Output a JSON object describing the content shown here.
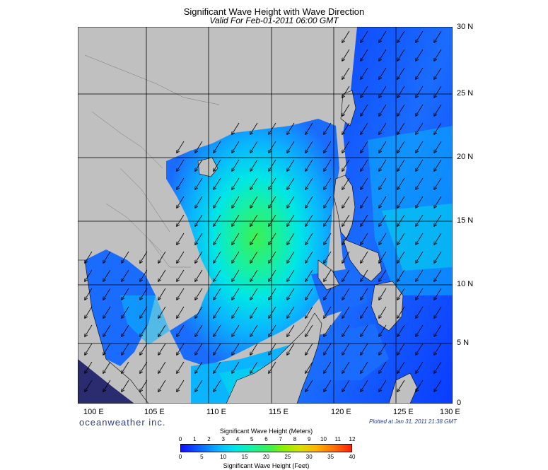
{
  "title": "Significant Wave Height with Wave Direction",
  "subtitle": "Valid For Feb-01-2011 06:00 GMT",
  "lon_labels": [
    "100 E",
    "105 E",
    "110 E",
    "115 E",
    "120 E",
    "125 E",
    "130 E"
  ],
  "lat_labels": [
    "30 N",
    "25 N",
    "20 N",
    "15 N",
    "10 N",
    "5 N",
    "0"
  ],
  "brand": "oceanweather inc.",
  "plotted": "Plotted at Jan 31, 2011 21:38 GMT",
  "legend": {
    "meters_title": "Significant Wave Height (Meters)",
    "feet_title": "Significant Wave Height (Feet)",
    "meters_ticks": [
      "0",
      "1",
      "2",
      "3",
      "4",
      "5",
      "6",
      "7",
      "8",
      "9",
      "10",
      "11",
      "12"
    ],
    "feet_ticks": [
      "0",
      "5",
      "10",
      "15",
      "20",
      "25",
      "30",
      "35",
      "40"
    ]
  },
  "colors": {
    "land": "#c0c0c0",
    "deep_blue": "#0a3cff",
    "blue": "#1a6cff",
    "sky": "#0ab4ff",
    "cyan": "#00e6e6",
    "aqua_green": "#19f0a0",
    "green": "#3cf050",
    "grid": "#000000"
  },
  "wave_direction": "southwest"
}
